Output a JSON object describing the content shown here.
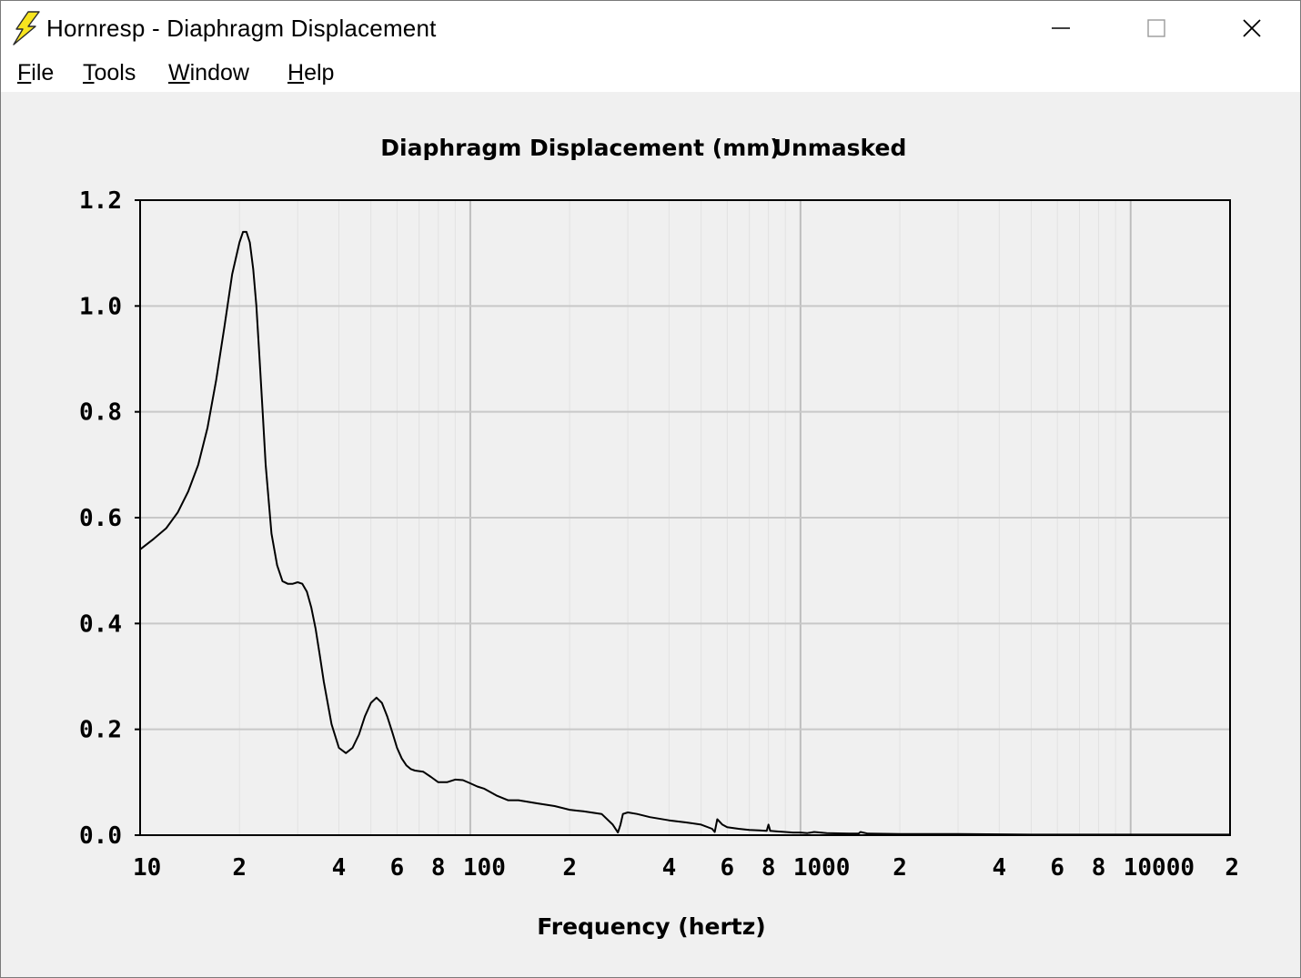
{
  "window": {
    "title": "Hornresp - Diaphragm Displacement",
    "app_icon": "lightning-bolt-icon",
    "controls": {
      "minimize_icon": "minimize-icon",
      "maximize_icon": "maximize-icon",
      "close_icon": "close-icon"
    }
  },
  "menu": {
    "items": [
      {
        "mnemonic": "F",
        "rest": "ile"
      },
      {
        "mnemonic": "T",
        "rest": "ools"
      },
      {
        "mnemonic": "W",
        "rest": "indow"
      },
      {
        "mnemonic": "H",
        "rest": "elp"
      }
    ]
  },
  "chart_data": {
    "type": "line",
    "title": "Diaphragm Displacement (mm)",
    "subtitle": "Unmasked",
    "xlabel": "Frequency (hertz)",
    "ylabel": "",
    "x_scale": "log",
    "xlim": [
      10,
      20000
    ],
    "ylim": [
      0,
      1.2
    ],
    "grid": true,
    "line_color": "#000000",
    "grid_color": "#c8c8c8",
    "y_ticks": [
      {
        "value": 0.0,
        "label": "0.0"
      },
      {
        "value": 0.2,
        "label": "0.2"
      },
      {
        "value": 0.4,
        "label": "0.4"
      },
      {
        "value": 0.6,
        "label": "0.6"
      },
      {
        "value": 0.8,
        "label": "0.8"
      },
      {
        "value": 1.0,
        "label": "1.0"
      },
      {
        "value": 1.2,
        "label": "1.2"
      }
    ],
    "x_ticks": [
      {
        "value": 10,
        "label": "10"
      },
      {
        "value": 20,
        "label": "2"
      },
      {
        "value": 40,
        "label": "4"
      },
      {
        "value": 60,
        "label": "6"
      },
      {
        "value": 80,
        "label": "8"
      },
      {
        "value": 100,
        "label": "100"
      },
      {
        "value": 200,
        "label": "2"
      },
      {
        "value": 400,
        "label": "4"
      },
      {
        "value": 600,
        "label": "6"
      },
      {
        "value": 800,
        "label": "8"
      },
      {
        "value": 1000,
        "label": "1000"
      },
      {
        "value": 2000,
        "label": "2"
      },
      {
        "value": 4000,
        "label": "4"
      },
      {
        "value": 6000,
        "label": "6"
      },
      {
        "value": 8000,
        "label": "8"
      },
      {
        "value": 10000,
        "label": "10000"
      },
      {
        "value": 20000,
        "label": "2"
      }
    ],
    "series": [
      {
        "x": [
          10,
          11,
          12,
          13,
          14,
          15,
          16,
          17,
          18,
          19,
          20,
          20.5,
          21,
          21.5,
          22,
          22.5,
          23,
          23.5,
          24,
          25,
          26,
          27,
          28,
          29,
          30,
          31,
          32,
          33,
          34,
          35,
          36,
          38,
          40,
          42,
          44,
          46,
          48,
          50,
          52,
          54,
          56,
          58,
          60,
          62,
          64,
          66,
          68,
          72,
          76,
          80,
          85,
          90,
          95,
          100,
          105,
          110,
          120,
          130,
          140,
          160,
          180,
          200,
          220,
          250,
          270,
          280,
          285,
          290,
          300,
          320,
          350,
          400,
          450,
          500,
          540,
          550,
          560,
          580,
          600,
          650,
          700,
          750,
          790,
          800,
          810,
          850,
          900,
          950,
          1000,
          1050,
          1100,
          1200,
          1400,
          1500,
          1520,
          1600,
          2000,
          3000,
          5000,
          10000,
          20000
        ],
        "y": [
          0.54,
          0.56,
          0.58,
          0.61,
          0.65,
          0.7,
          0.77,
          0.86,
          0.96,
          1.06,
          1.12,
          1.14,
          1.14,
          1.12,
          1.07,
          1.0,
          0.9,
          0.8,
          0.7,
          0.57,
          0.51,
          0.48,
          0.475,
          0.475,
          0.478,
          0.475,
          0.46,
          0.43,
          0.39,
          0.34,
          0.29,
          0.21,
          0.165,
          0.155,
          0.165,
          0.19,
          0.225,
          0.25,
          0.26,
          0.25,
          0.225,
          0.195,
          0.165,
          0.145,
          0.132,
          0.125,
          0.122,
          0.12,
          0.11,
          0.1,
          0.1,
          0.105,
          0.104,
          0.098,
          0.092,
          0.088,
          0.075,
          0.066,
          0.066,
          0.06,
          0.055,
          0.048,
          0.045,
          0.04,
          0.02,
          0.005,
          0.02,
          0.04,
          0.043,
          0.04,
          0.034,
          0.028,
          0.024,
          0.02,
          0.012,
          0.006,
          0.03,
          0.02,
          0.015,
          0.012,
          0.01,
          0.009,
          0.008,
          0.02,
          0.008,
          0.007,
          0.006,
          0.005,
          0.005,
          0.004,
          0.006,
          0.004,
          0.003,
          0.003,
          0.006,
          0.003,
          0.002,
          0.002,
          0.001,
          0.001,
          0.001
        ]
      }
    ]
  }
}
